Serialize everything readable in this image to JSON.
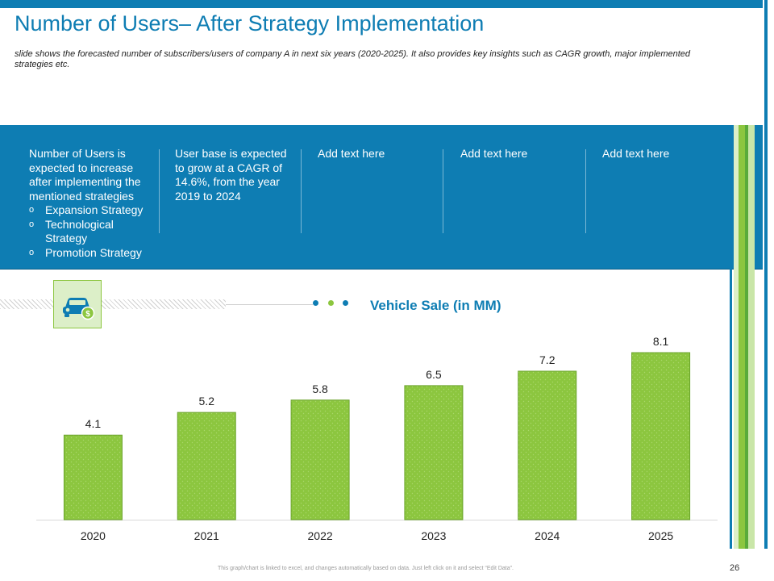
{
  "slide": {
    "title": "Number of Users– After Strategy Implementation",
    "subtitle": "slide shows the forecasted number of subscribers/users of company A in next six years (2020-2025). It also provides key insights such as CAGR growth, major implemented strategies etc.",
    "page_number": "26",
    "footer_note": "This graph/chart is linked to excel, and changes automatically based on data. Just left click on it and select “Edit Data”."
  },
  "insights": {
    "col1": {
      "text": "Number of Users is expected to increase after implementing the mentioned strategies",
      "bullets": [
        "Expansion Strategy",
        "Technological Strategy",
        "Promotion Strategy"
      ]
    },
    "col2": {
      "text": "User base is expected to grow at a CAGR of 14.6%, from the year 2019 to 2024"
    },
    "col3": {
      "text": "Add text here"
    },
    "col4": {
      "text": "Add text here"
    },
    "col5": {
      "text": "Add text here"
    }
  },
  "icons": {
    "header_icon": "car-dollar-icon",
    "dots_icon": "three-dots-icon"
  },
  "colors": {
    "accent_blue": "#0e7db3",
    "bar_green": "#8cc63f",
    "bar_border": "#6aa32b",
    "light_green": "#dcefc8",
    "dot_blue": "#0e7db3",
    "dot_green": "#8cc63f"
  },
  "chart_data": {
    "type": "bar",
    "title": "Vehicle Sale (in MM)",
    "categories": [
      "2020",
      "2021",
      "2022",
      "2023",
      "2024",
      "2025"
    ],
    "values": [
      4.1,
      5.2,
      5.8,
      6.5,
      7.2,
      8.1
    ],
    "xlabel": "",
    "ylabel": "",
    "ylim": [
      0,
      8.1
    ],
    "grid": false,
    "legend": "none"
  }
}
